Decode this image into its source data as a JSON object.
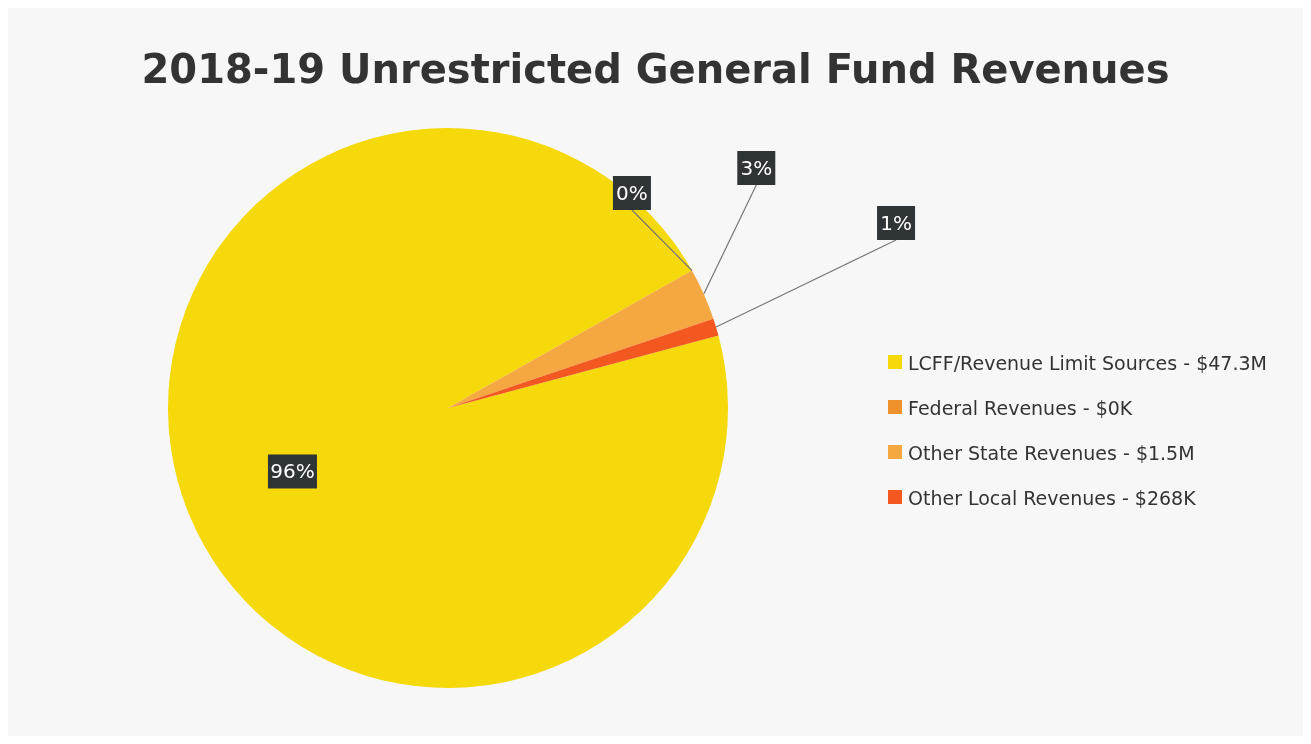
{
  "chart_data": {
    "type": "pie",
    "title": "2018-19 Unrestricted General Fund Revenues",
    "categories": [
      "LCFF/Revenue Limit Sources - $47.3M",
      "Federal Revenues - $0K",
      "Other State Revenues - $1.5M",
      "Other Local Revenues - $268K"
    ],
    "values": [
      96,
      0,
      3,
      1
    ],
    "value_labels": [
      "96%",
      "0%",
      "3%",
      "1%"
    ],
    "colors": [
      "#f5d90a",
      "#f0922b",
      "#f5a742",
      "#f2581f"
    ],
    "legend": "right"
  }
}
